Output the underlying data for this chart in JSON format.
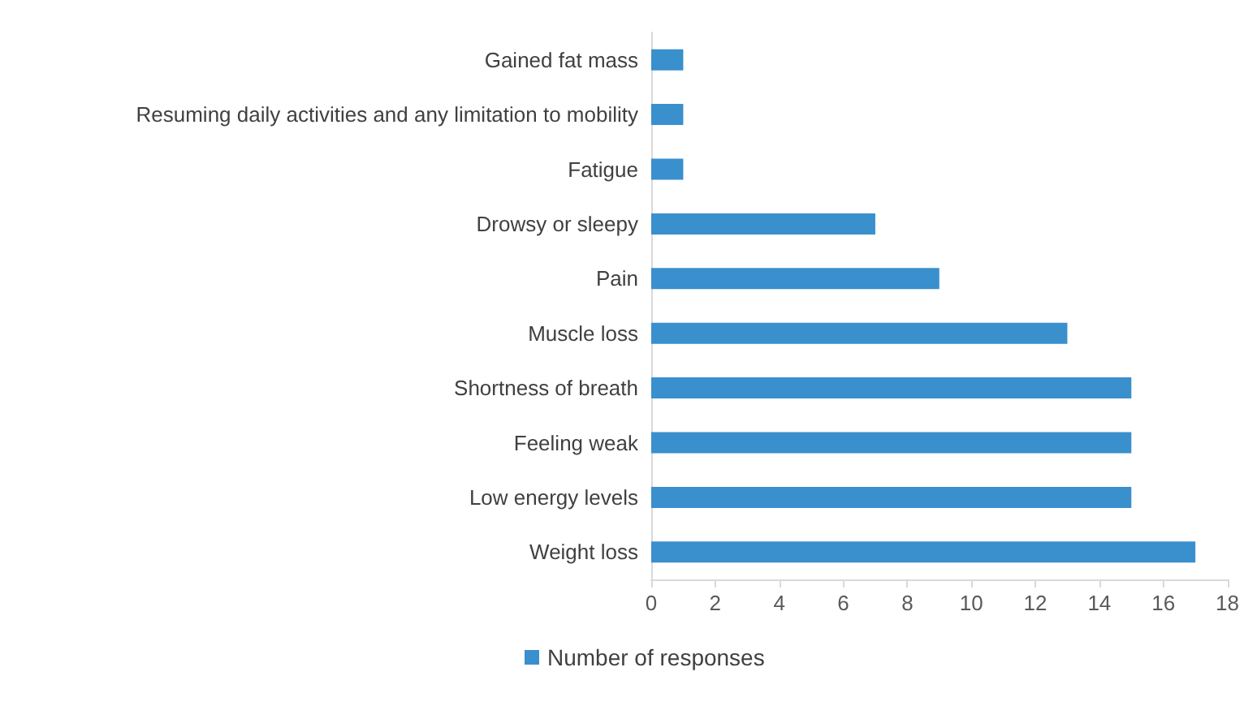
{
  "chart_data": {
    "type": "bar",
    "orientation": "horizontal",
    "categories": [
      "Gained fat mass",
      "Resuming daily activities and any limitation to mobility",
      "Fatigue",
      "Drowsy or sleepy",
      "Pain",
      "Muscle loss",
      "Shortness of breath",
      "Feeling weak",
      "Low energy levels",
      "Weight loss"
    ],
    "series": [
      {
        "name": "Number of responses",
        "color": "#3a8fcd",
        "values": [
          1,
          1,
          1,
          7,
          9,
          13,
          15,
          15,
          15,
          17
        ]
      }
    ],
    "xlim": [
      0,
      18
    ],
    "xticks": [
      0,
      2,
      4,
      6,
      8,
      10,
      12,
      14,
      16,
      18
    ],
    "grid": false,
    "legend": "bottom"
  }
}
